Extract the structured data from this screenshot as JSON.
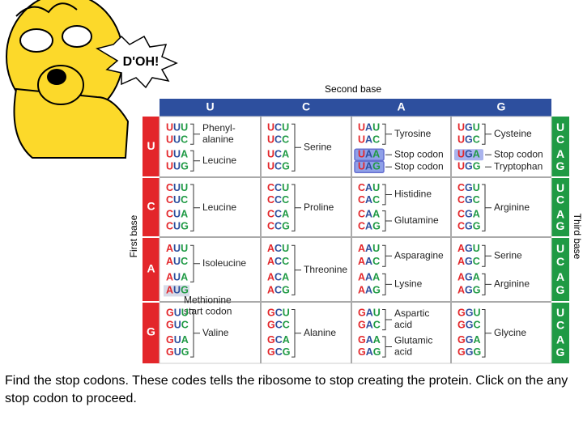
{
  "cartoon": {
    "exclamation": "D'OH!"
  },
  "table": {
    "second_base_label": "Second base",
    "first_base_label": "First base",
    "third_base_label": "Third base",
    "columns": [
      "U",
      "C",
      "A",
      "G"
    ],
    "third_bases": [
      "U",
      "C",
      "A",
      "G"
    ],
    "rows": [
      {
        "base": "U",
        "cells": [
          {
            "groups": [
              {
                "codons": [
                  "UUU",
                  "UUC"
                ],
                "label": [
                  "Phenyl-",
                  "alanine"
                ]
              },
              {
                "codons": [
                  "UUA",
                  "UUG"
                ],
                "label": [
                  "Leucine"
                ]
              }
            ]
          },
          {
            "groups": [
              {
                "codons": [
                  "UCU",
                  "UCC",
                  "UCA",
                  "UCG"
                ],
                "label": [
                  "Serine"
                ]
              }
            ]
          },
          {
            "groups": [
              {
                "codons": [
                  "UAU",
                  "UAC"
                ],
                "label": [
                  "Tyrosine"
                ]
              },
              {
                "codons": [
                  "UAA"
                ],
                "label": [
                  "Stop codon"
                ]
              },
              {
                "codons": [
                  "UAG"
                ],
                "label": [
                  "Stop codon"
                ]
              }
            ]
          },
          {
            "groups": [
              {
                "codons": [
                  "UGU",
                  "UGC"
                ],
                "label": [
                  "Cysteine"
                ]
              },
              {
                "codons": [
                  "UGA"
                ],
                "label": [
                  "Stop codon"
                ]
              },
              {
                "codons": [
                  "UGG"
                ],
                "label": [
                  "Tryptophan"
                ]
              }
            ]
          }
        ]
      },
      {
        "base": "C",
        "cells": [
          {
            "groups": [
              {
                "codons": [
                  "CUU",
                  "CUC",
                  "CUA",
                  "CUG"
                ],
                "label": [
                  "Leucine"
                ]
              }
            ]
          },
          {
            "groups": [
              {
                "codons": [
                  "CCU",
                  "CCC",
                  "CCA",
                  "CCG"
                ],
                "label": [
                  "Proline"
                ]
              }
            ]
          },
          {
            "groups": [
              {
                "codons": [
                  "CAU",
                  "CAC"
                ],
                "label": [
                  "Histidine"
                ]
              },
              {
                "codons": [
                  "CAA",
                  "CAG"
                ],
                "label": [
                  "Glutamine"
                ]
              }
            ]
          },
          {
            "groups": [
              {
                "codons": [
                  "CGU",
                  "CGC",
                  "CGA",
                  "CGG"
                ],
                "label": [
                  "Arginine"
                ]
              }
            ]
          }
        ]
      },
      {
        "base": "A",
        "cells": [
          {
            "groups": [
              {
                "codons": [
                  "AUU",
                  "AUC",
                  "AUA"
                ],
                "label": [
                  "Isoleucine"
                ]
              },
              {
                "codons": [
                  "AUG"
                ],
                "label": [
                  "Methionine",
                  "start codon"
                ]
              }
            ]
          },
          {
            "groups": [
              {
                "codons": [
                  "ACU",
                  "ACC",
                  "ACA",
                  "ACG"
                ],
                "label": [
                  "Threonine"
                ]
              }
            ]
          },
          {
            "groups": [
              {
                "codons": [
                  "AAU",
                  "AAC"
                ],
                "label": [
                  "Asparagine"
                ]
              },
              {
                "codons": [
                  "AAA",
                  "AAG"
                ],
                "label": [
                  "Lysine"
                ]
              }
            ]
          },
          {
            "groups": [
              {
                "codons": [
                  "AGU",
                  "AGC"
                ],
                "label": [
                  "Serine"
                ]
              },
              {
                "codons": [
                  "AGA",
                  "AGG"
                ],
                "label": [
                  "Arginine"
                ]
              }
            ]
          }
        ]
      },
      {
        "base": "G",
        "cells": [
          {
            "groups": [
              {
                "codons": [
                  "GUU",
                  "GUC",
                  "GUA",
                  "GUG"
                ],
                "label": [
                  "Valine"
                ]
              }
            ]
          },
          {
            "groups": [
              {
                "codons": [
                  "GCU",
                  "GCC",
                  "GCA",
                  "GCG"
                ],
                "label": [
                  "Alanine"
                ]
              }
            ]
          },
          {
            "groups": [
              {
                "codons": [
                  "GAU",
                  "GAC"
                ],
                "label": [
                  "Aspartic",
                  "acid"
                ]
              },
              {
                "codons": [
                  "GAA",
                  "GAG"
                ],
                "label": [
                  "Glutamic",
                  "acid"
                ]
              }
            ]
          },
          {
            "groups": [
              {
                "codons": [
                  "GGU",
                  "GGC",
                  "GGA",
                  "GGG"
                ],
                "label": [
                  "Glycine"
                ]
              }
            ]
          }
        ]
      }
    ]
  },
  "instruction": "Find the stop codons. These codes tells the ribosome to stop creating the protein. Click on the any stop codon to proceed."
}
